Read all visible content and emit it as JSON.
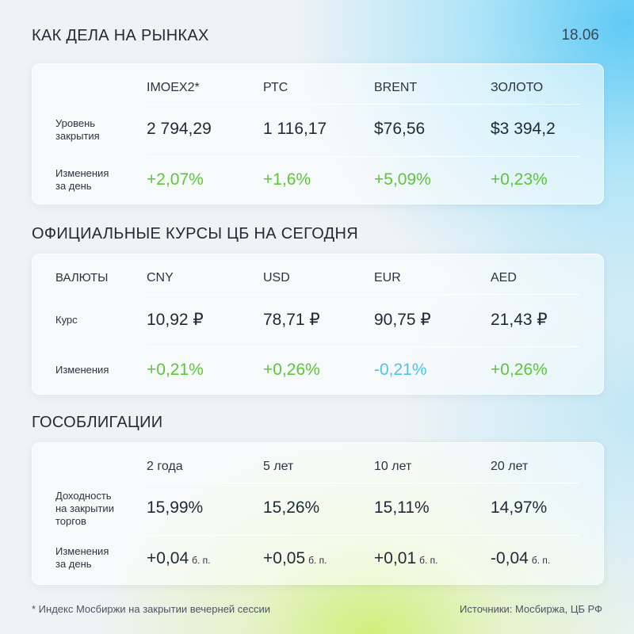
{
  "header": {
    "title": "КАК ДЕЛА НА РЫНКАХ",
    "date": "18.06"
  },
  "markets": {
    "columns": [
      "IMOEX2*",
      "РТС",
      "BRENT",
      "ЗОЛОТО"
    ],
    "rows": [
      {
        "label": "Уровень\nзакрытия",
        "values": [
          "2 794,29",
          "1 116,17",
          "$76,56",
          "$3 394,2"
        ]
      },
      {
        "label": "Изменения\nза день",
        "values": [
          "+2,07%",
          "+1,6%",
          "+5,09%",
          "+0,23%"
        ]
      }
    ]
  },
  "cb_rates": {
    "title": "ОФИЦИАЛЬНЫЕ КУРСЫ ЦБ НА СЕГОДНЯ",
    "corner": "ВАЛЮТЫ",
    "columns": [
      "CNY",
      "USD",
      "EUR",
      "AED"
    ],
    "rows": [
      {
        "label": "Курс",
        "values": [
          "10,92 ₽",
          "78,71 ₽",
          "90,75 ₽",
          "21,43 ₽"
        ]
      },
      {
        "label": "Изменения",
        "values": [
          "+0,21%",
          "+0,26%",
          "-0,21%",
          "+0,26%"
        ]
      }
    ]
  },
  "bonds": {
    "title": "ГОСОБЛИГАЦИИ",
    "columns": [
      "2 года",
      "5 лет",
      "10 лет",
      "20 лет"
    ],
    "rows": [
      {
        "label": "Доходность\nна закрытии\nторгов",
        "values": [
          "15,99%",
          "15,26%",
          "15,11%",
          "14,97%"
        ]
      },
      {
        "label": "Изменения\nза день",
        "values": [
          "+0,04",
          "+0,05",
          "+0,01",
          "-0,04"
        ],
        "unit": "б. п."
      }
    ]
  },
  "footer": {
    "note": "* Индекс Мосбиржи на закрытии вечерней сессии",
    "sources": "Источники: Мосбиржа, ЦБ РФ"
  },
  "colors": {
    "positive": "#5ec43a",
    "negative": "#4cc3ea"
  }
}
